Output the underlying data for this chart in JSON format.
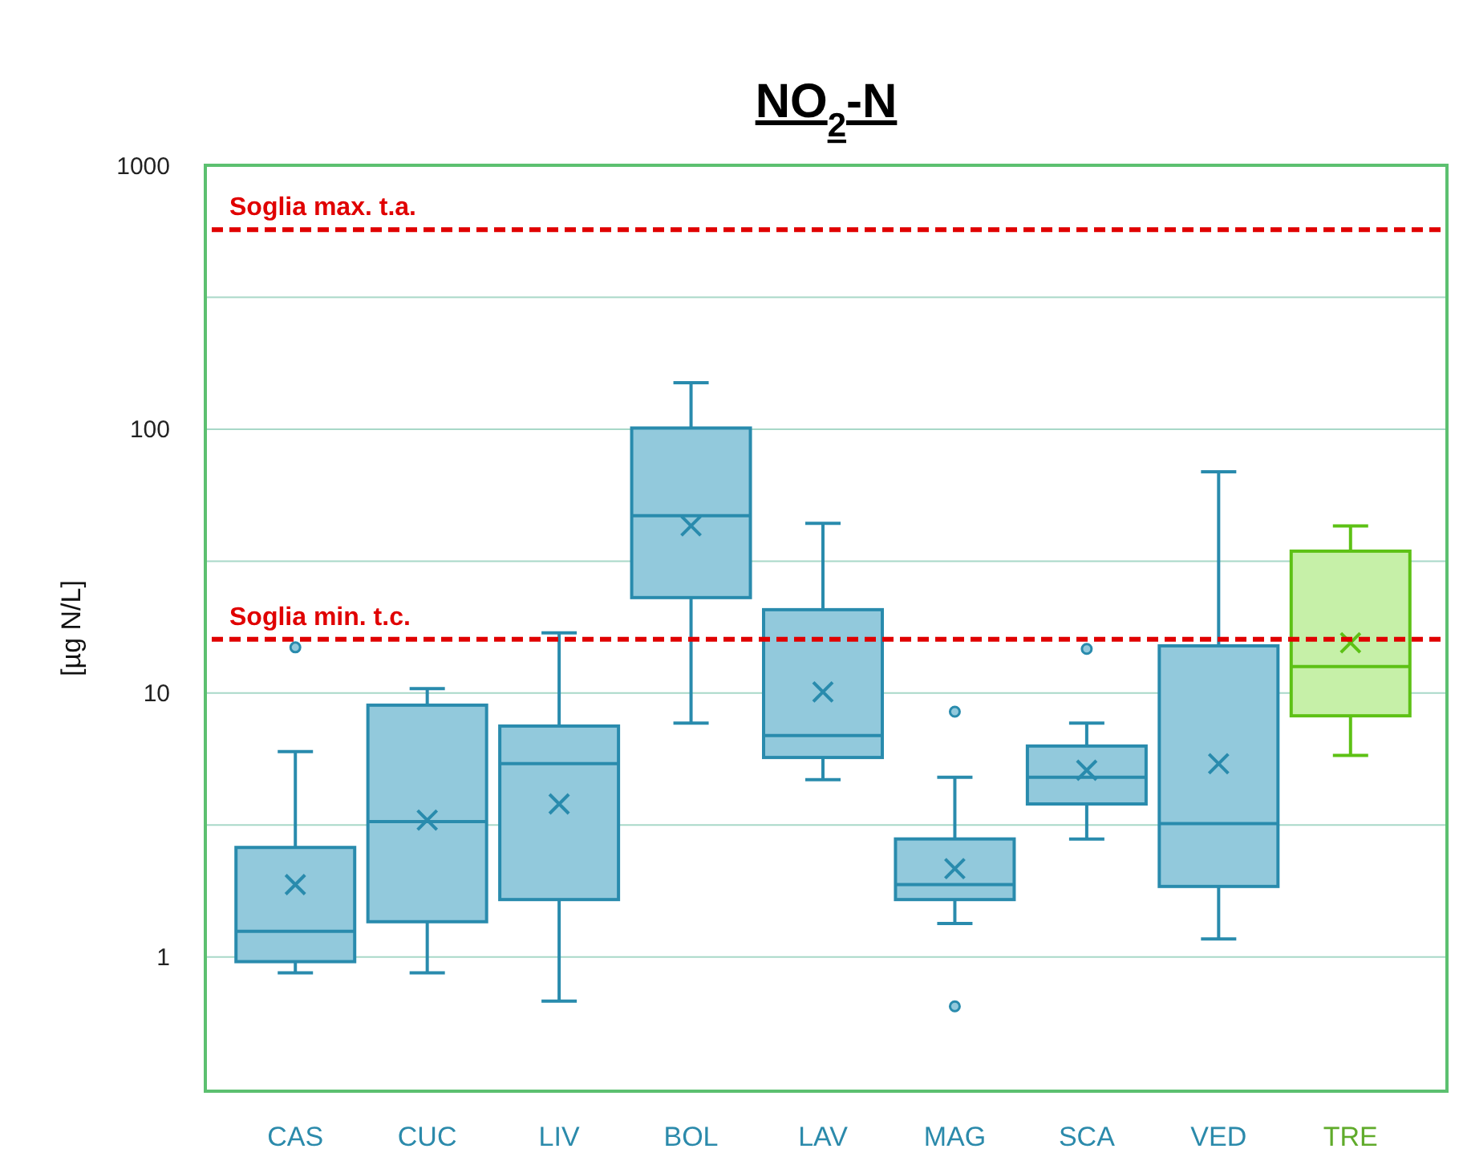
{
  "chart_data": {
    "type": "box",
    "title": "NO$_{2}$-N",
    "ylabel": "[µg N/L]",
    "log": true,
    "grid": "y",
    "categories": [
      "CAS",
      "CUC",
      "LIV",
      "BOL",
      "LAV",
      "MAG",
      "SCA",
      "VED",
      "TRE"
    ],
    "colors": [
      "#92c9dc",
      "#92c9dc",
      "#92c9dc",
      "#92c9dc",
      "#92c9dc",
      "#92c9dc",
      "#92c9dc",
      "#92c9dc",
      "#c6f0a8"
    ],
    "ylim": [
      0.31,
      1000
    ],
    "yticks": [
      1,
      {
        "value": 3.16,
        "label": null
      },
      10,
      {
        "value": 31.6,
        "label": null
      },
      100,
      {
        "value": 316,
        "label": null
      },
      1000
    ],
    "boxes": [
      {
        "low": 0.87,
        "q1": 0.96,
        "median": 1.25,
        "q3": 2.6,
        "high": 6.0,
        "mean": 1.88,
        "outliers": [
          14.9
        ]
      },
      {
        "low": 0.87,
        "q1": 1.36,
        "median": 3.26,
        "q3": 9.0,
        "high": 10.4,
        "mean": 3.3
      },
      {
        "low": 0.68,
        "q1": 1.65,
        "median": 5.4,
        "q3": 7.5,
        "high": 16.9,
        "mean": 3.8
      },
      {
        "low": 7.7,
        "q1": 23,
        "median": 47,
        "q3": 101,
        "high": 150,
        "mean": 43
      },
      {
        "low": 4.7,
        "q1": 5.7,
        "median": 6.9,
        "q3": 20.7,
        "high": 44,
        "mean": 10.1
      },
      {
        "low": 1.34,
        "q1": 1.65,
        "median": 1.88,
        "q3": 2.8,
        "high": 4.8,
        "mean": 2.16,
        "outliers": [
          8.5,
          0.65
        ]
      },
      {
        "low": 2.8,
        "q1": 3.8,
        "median": 4.8,
        "q3": 6.3,
        "high": 7.7,
        "mean": 5.1,
        "outliers": [
          14.7
        ]
      },
      {
        "low": 1.17,
        "q1": 1.85,
        "median": 3.2,
        "q3": 15.1,
        "high": 69,
        "mean": 5.4
      },
      {
        "low": 5.8,
        "q1": 8.2,
        "median": 12.6,
        "q3": 34.5,
        "high": 43,
        "mean": 15.5
      }
    ],
    "ref_lines": [
      {
        "axis": "y",
        "value": 570,
        "label": "Soglia max. t.a.",
        "color": "#e00000",
        "line_style": "dashed"
      },
      {
        "axis": "y",
        "value": 16,
        "label": "Soglia min. t.c.",
        "color": "#e00000",
        "line_style": "dashed"
      }
    ]
  }
}
